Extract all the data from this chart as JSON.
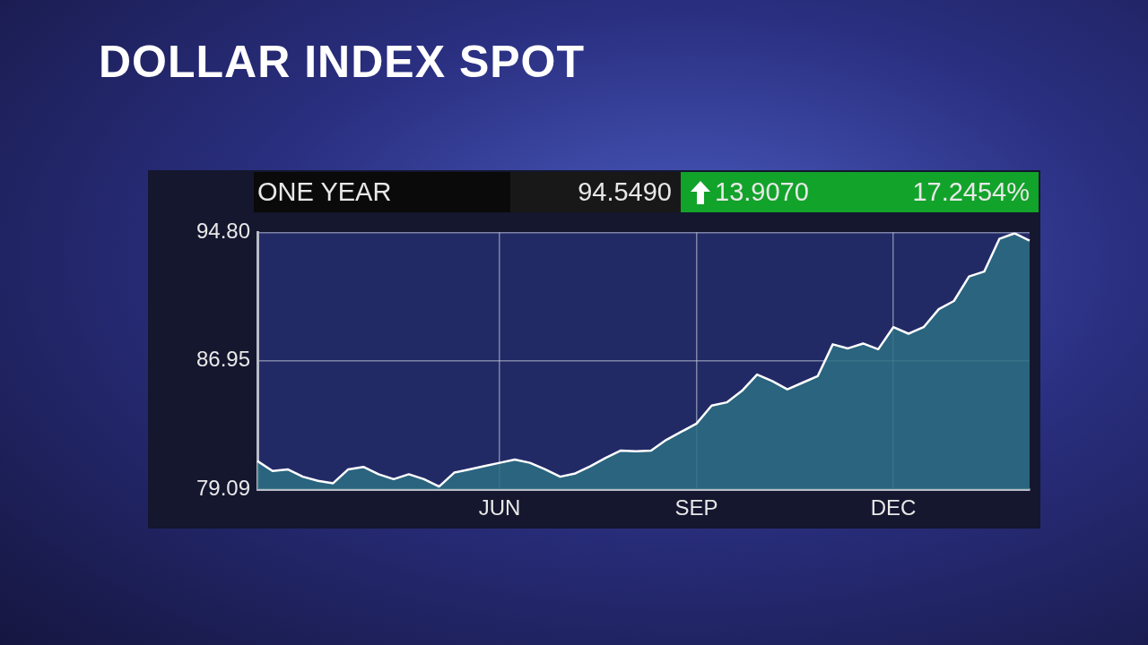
{
  "chart_data": {
    "type": "area",
    "title": "DOLLAR INDEX SPOT",
    "annotations": [
      "ONE YEAR",
      "94.5490",
      "13.9070",
      "17.2454%"
    ],
    "categories": [
      null,
      null,
      null,
      null,
      null,
      null,
      null,
      null,
      null,
      null,
      null,
      null,
      null,
      null,
      null,
      null,
      "JUN",
      null,
      null,
      null,
      null,
      null,
      null,
      null,
      null,
      null,
      null,
      null,
      null,
      "SEP",
      null,
      null,
      null,
      null,
      null,
      null,
      null,
      null,
      null,
      null,
      null,
      null,
      "DEC",
      null,
      null,
      null,
      null,
      null,
      null,
      null,
      null,
      null
    ],
    "series": [
      {
        "color": "#ffffff",
        "values": [
          80.81,
          80.2,
          80.3,
          79.85,
          79.6,
          79.45,
          80.3,
          80.45,
          80.0,
          79.7,
          80.0,
          79.7,
          79.25,
          80.1,
          80.3,
          80.5,
          80.7,
          80.9,
          80.7,
          80.3,
          79.85,
          80.05,
          80.5,
          81.0,
          81.45,
          81.4,
          81.45,
          82.1,
          82.6,
          83.1,
          84.2,
          84.4,
          85.1,
          86.1,
          85.7,
          85.2,
          85.6,
          86.0,
          87.95,
          87.7,
          88.0,
          87.65,
          89.0,
          88.6,
          89.0,
          90.1,
          90.6,
          92.1,
          92.4,
          94.4,
          94.74,
          94.3
        ]
      }
    ],
    "ylim": [
      79.09,
      94.8
    ],
    "yticks": [
      79.09,
      86.95,
      {
        "value": 94.8,
        "label": "94.80"
      }
    ],
    "grid": true,
    "legend": false,
    "marker": "none",
    "line_style": "solid"
  }
}
